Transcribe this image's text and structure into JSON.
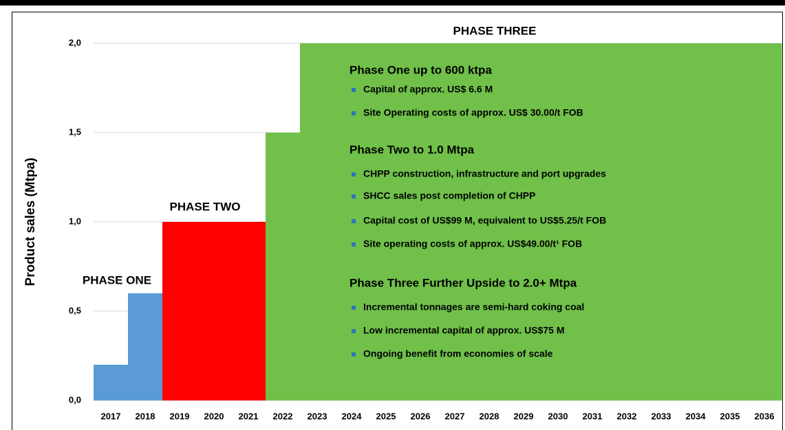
{
  "chart_data": {
    "type": "bar",
    "y_label": "Product sales (Mtpa)",
    "categories": [
      "2017",
      "2018",
      "2019",
      "2020",
      "2021",
      "2022",
      "2023",
      "2024",
      "2025",
      "2026",
      "2027",
      "2028",
      "2029",
      "2030",
      "2031",
      "2032",
      "2033",
      "2034",
      "2035",
      "2036"
    ],
    "values": [
      0.2,
      0.6,
      1.0,
      1.0,
      1.0,
      1.5,
      2.0,
      2.0,
      2.0,
      2.0,
      2.0,
      2.0,
      2.0,
      2.0,
      2.0,
      2.0,
      2.0,
      2.0,
      2.0,
      2.0
    ],
    "colors": [
      "#5b9bd5",
      "#5b9bd5",
      "#ff0000",
      "#ff0000",
      "#ff0000",
      "#70c04a",
      "#70c04a",
      "#70c04a",
      "#70c04a",
      "#70c04a",
      "#70c04a",
      "#70c04a",
      "#70c04a",
      "#70c04a",
      "#70c04a",
      "#70c04a",
      "#70c04a",
      "#70c04a",
      "#70c04a",
      "#70c04a"
    ],
    "ylim": [
      0,
      2.0
    ],
    "yticks": [
      {
        "value": 0,
        "label": "0,0"
      },
      {
        "value": 0.5,
        "label": "0,5"
      },
      {
        "value": 1.0,
        "label": "1,0"
      },
      {
        "value": 1.5,
        "label": "1,5"
      },
      {
        "value": 2.0,
        "label": "2,0"
      }
    ],
    "grid": true,
    "annotations": [
      {
        "text": "PHASE ONE",
        "color": "#2e75b6"
      },
      {
        "text": "PHASE TWO",
        "color": "#ff0000"
      },
      {
        "text": "PHASE THREE",
        "color": "#22a845"
      }
    ],
    "notes": [
      {
        "heading": "Phase One up to 600 ktpa",
        "bullets": [
          "Capital of approx. US$ 6.6 M",
          "Site Operating costs of approx. US$ 30.00/t FOB"
        ]
      },
      {
        "heading": "Phase Two to 1.0 Mtpa",
        "bullets": [
          "CHPP construction, infrastructure and port upgrades",
          "SHCC sales post completion of CHPP",
          "Capital cost of US$99 M, equivalent to US$5.25/t FOB",
          "Site operating costs of approx. US$49.00/t¹ FOB"
        ]
      },
      {
        "heading": "Phase Three Further Upside to 2.0+ Mtpa",
        "bullets": [
          "Incremental tonnages are semi-hard coking coal",
          "Low incremental capital of approx. US$75 M",
          "Ongoing benefit from economies of scale"
        ]
      }
    ]
  }
}
